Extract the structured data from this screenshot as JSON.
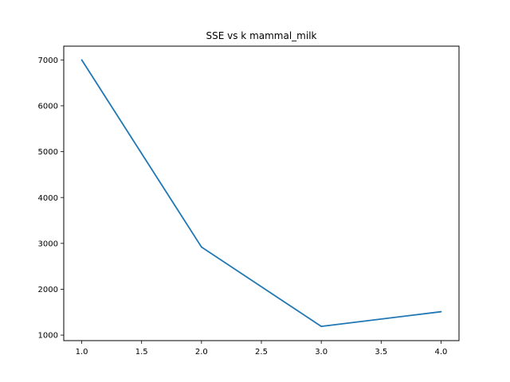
{
  "chart_data": {
    "type": "line",
    "title": "SSE vs k mammal_milk",
    "xlabel": "",
    "ylabel": "",
    "x": [
      1.0,
      2.0,
      3.0,
      4.0
    ],
    "series": [
      {
        "values": [
          7000,
          2920,
          1190,
          1510
        ],
        "color": "#1f77b4"
      }
    ],
    "xlim": [
      0.85,
      4.15
    ],
    "ylim": [
      880,
      7300
    ],
    "xticks": [
      1.0,
      1.5,
      2.0,
      2.5,
      3.0,
      3.5,
      4.0
    ],
    "xtick_labels": [
      "1.0",
      "1.5",
      "2.0",
      "2.5",
      "3.0",
      "3.5",
      "4.0"
    ],
    "yticks": [
      1000,
      2000,
      3000,
      4000,
      5000,
      6000,
      7000
    ],
    "ytick_labels": [
      "1000",
      "2000",
      "3000",
      "4000",
      "5000",
      "6000",
      "7000"
    ],
    "grid": false,
    "legend": false
  }
}
